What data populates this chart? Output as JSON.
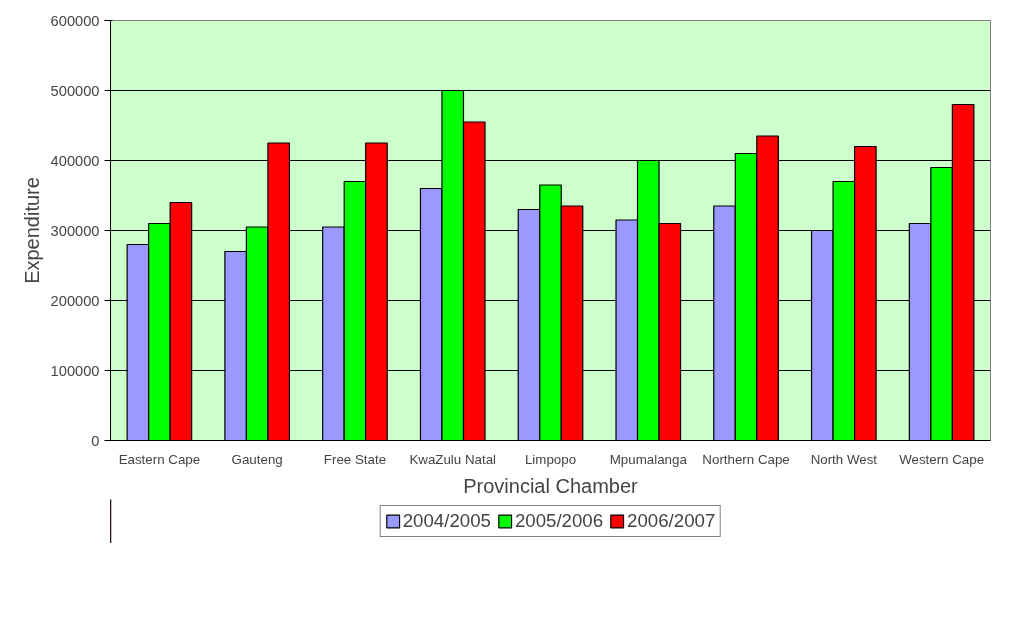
{
  "chart_data": {
    "type": "bar",
    "xlabel": "Provincial Chamber",
    "ylabel": "Expenditure",
    "categories": [
      "Eastern Cape",
      "Gauteng",
      "Free State",
      "KwaZulu Natal",
      "Limpopo",
      "Mpumalanga",
      "Northern Cape",
      "North West",
      "Western Cape"
    ],
    "series": [
      {
        "name": "2004/2005",
        "color": "#9999ff",
        "values": [
          280000,
          270000,
          305000,
          360000,
          330000,
          315000,
          335000,
          300000,
          310000
        ]
      },
      {
        "name": "2005/2006",
        "color": "#00ff00",
        "values": [
          310000,
          305000,
          370000,
          500000,
          365000,
          400000,
          410000,
          370000,
          390000
        ]
      },
      {
        "name": "2006/2007",
        "color": "#ff0000",
        "values": [
          340000,
          425000,
          425000,
          455000,
          335000,
          310000,
          435000,
          420000,
          480000
        ]
      }
    ],
    "ylim": [
      0,
      600000
    ],
    "yticks": [
      0,
      100000,
      200000,
      300000,
      400000,
      500000,
      600000
    ],
    "grid": "y",
    "legend": "bottom"
  }
}
